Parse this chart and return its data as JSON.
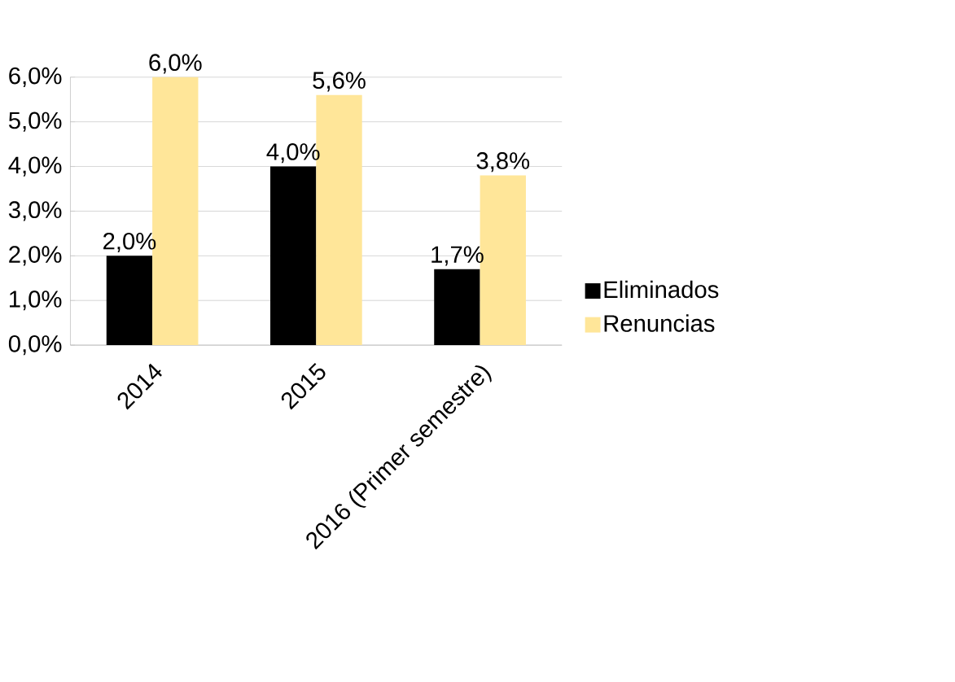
{
  "chart_data": {
    "type": "bar",
    "categories": [
      "2014",
      "2015",
      "2016 (Primer semestre)"
    ],
    "series": [
      {
        "name": "Eliminados",
        "color": "#000000",
        "values": [
          2.0,
          4.0,
          1.7
        ],
        "value_labels": [
          "2,0%",
          "4,0%",
          "1,7%"
        ]
      },
      {
        "name": "Renuncias",
        "color": "#ffe699",
        "values": [
          6.0,
          5.6,
          3.8
        ],
        "value_labels": [
          "6,0%",
          "5,6%",
          "3,8%"
        ]
      }
    ],
    "ylim": [
      0,
      6
    ],
    "yticks": [
      {
        "value": 0,
        "label": "0,0%"
      },
      {
        "value": 1,
        "label": "1,0%"
      },
      {
        "value": 2,
        "label": "2,0%"
      },
      {
        "value": 3,
        "label": "3,0%"
      },
      {
        "value": 4,
        "label": "4,0%"
      },
      {
        "value": 5,
        "label": "5,0%"
      },
      {
        "value": 6,
        "label": "6,0%"
      }
    ],
    "grid": "y",
    "legend": "right"
  }
}
